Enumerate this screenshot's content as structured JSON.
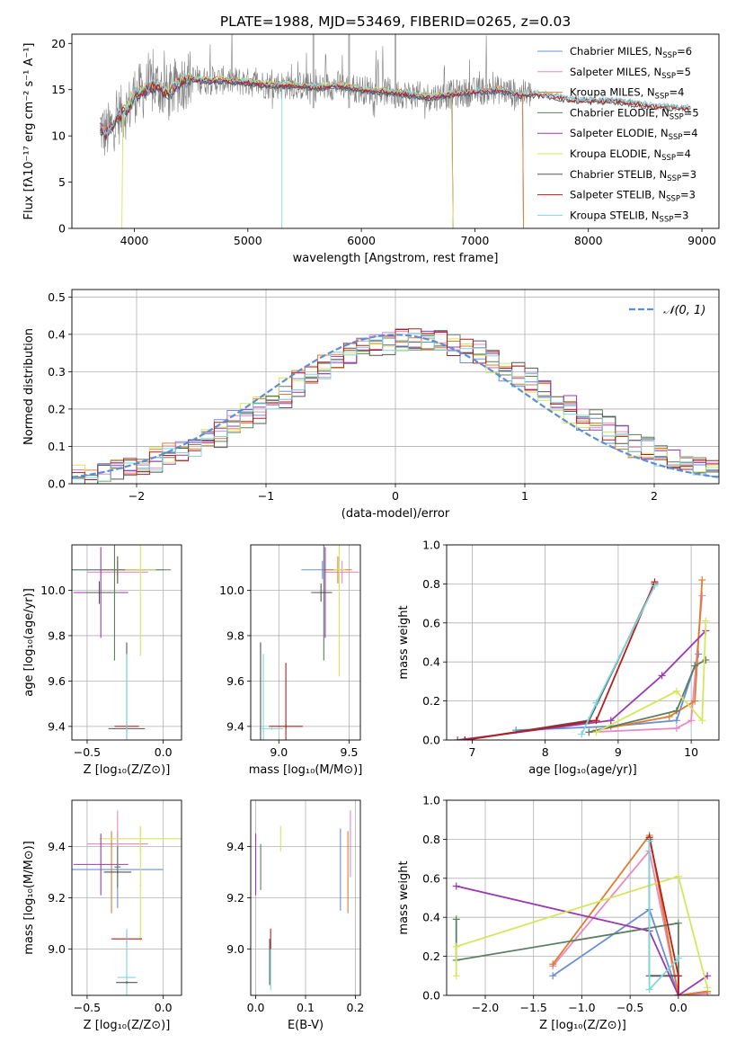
{
  "figure": {
    "title": "PLATE=1988, MJD=53469, FIBERID=0265, z=0.03"
  },
  "colors": {
    "Chabrier MILES": "#6a8fd8",
    "Salpeter MILES": "#e98ac0",
    "Kroupa MILES": "#e07d2d",
    "Chabrier ELODIE": "#5c7f61",
    "Salpeter ELODIE": "#9b3ab0",
    "Kroupa ELODIE": "#d5e65c",
    "Chabrier STELIB": "#555555",
    "Salpeter STELIB": "#b81d1d",
    "Kroupa STELIB": "#7fd6dd"
  },
  "chart_data": [
    {
      "id": "spectrum",
      "type": "line",
      "xlabel": "wavelength [Angstrom, rest frame]",
      "ylabel": "Flux [fλ10⁻¹⁷ erg cm⁻² s⁻¹ A⁻¹]",
      "xlim": [
        3450,
        9150
      ],
      "ylim": [
        0,
        21
      ],
      "xticks": [
        4000,
        5000,
        6000,
        7000,
        8000,
        9000
      ],
      "yticks": [
        0,
        5,
        10,
        15,
        20
      ],
      "grid": false,
      "legend_position": "top-right",
      "legend": [
        {
          "label": "Chabrier MILES, N",
          "sub": "SSP",
          "suffix": "=6"
        },
        {
          "label": "Salpeter MILES, N",
          "sub": "SSP",
          "suffix": "=5"
        },
        {
          "label": "Kroupa MILES, N",
          "sub": "SSP",
          "suffix": "=4"
        },
        {
          "label": "Chabrier ELODIE, N",
          "sub": "SSP",
          "suffix": "=5"
        },
        {
          "label": "Salpeter ELODIE, N",
          "sub": "SSP",
          "suffix": "=4"
        },
        {
          "label": "Kroupa ELODIE, N",
          "sub": "SSP",
          "suffix": "=4"
        },
        {
          "label": "Chabrier STELIB, N",
          "sub": "SSP",
          "suffix": "=3"
        },
        {
          "label": "Salpeter STELIB, N",
          "sub": "SSP",
          "suffix": "=3"
        },
        {
          "label": "Kroupa STELIB, N",
          "sub": "SSP",
          "suffix": "=3"
        }
      ],
      "series_names": [
        "Chabrier MILES",
        "Salpeter MILES",
        "Kroupa MILES",
        "Chabrier ELODIE",
        "Salpeter ELODIE",
        "Kroupa ELODIE",
        "Chabrier STELIB",
        "Salpeter STELIB",
        "Kroupa STELIB"
      ],
      "continuum": {
        "x": [
          3700,
          3750,
          3800,
          3850,
          3900,
          3950,
          4000,
          4100,
          4200,
          4300,
          4400,
          4500,
          4600,
          4800,
          5000,
          5200,
          5400,
          5600,
          5800,
          6000,
          6200,
          6400,
          6600,
          6800,
          7000,
          7200,
          7400,
          7600,
          7800,
          8000,
          8200,
          8400,
          8600,
          8800
        ],
        "y": [
          11.0,
          10.2,
          11.0,
          12.0,
          12.5,
          13.0,
          14.5,
          15.0,
          15.5,
          14.5,
          15.8,
          16.2,
          16.0,
          16.0,
          15.8,
          15.5,
          15.5,
          15.2,
          15.5,
          15.0,
          14.8,
          14.5,
          14.2,
          14.5,
          14.8,
          15.0,
          14.5,
          14.5,
          14.0,
          13.8,
          13.8,
          13.5,
          13.2,
          13.0
        ]
      },
      "model_ranges": {
        "Chabrier MILES": [
          3700,
          7420
        ],
        "Salpeter MILES": [
          3700,
          7420
        ],
        "Kroupa MILES": [
          3700,
          7420
        ],
        "Chabrier ELODIE": [
          3700,
          6800
        ],
        "Salpeter ELODIE": [
          3700,
          6800
        ],
        "Kroupa ELODIE": [
          3900,
          6800
        ],
        "Chabrier STELIB": [
          3700,
          8900
        ],
        "Salpeter STELIB": [
          3700,
          8900
        ],
        "Kroupa STELIB": [
          3700,
          8900
        ]
      }
    },
    {
      "id": "residuals",
      "type": "histogram",
      "xlabel": "(data-model)/error",
      "ylabel": "Normed distribution",
      "xlim": [
        -2.5,
        2.5
      ],
      "ylim": [
        0,
        0.52
      ],
      "xticks": [
        -2,
        -1,
        0,
        1,
        2
      ],
      "yticks": [
        0.0,
        0.1,
        0.2,
        0.3,
        0.4,
        0.5
      ],
      "grid": true,
      "legend_position": "top-right",
      "legend": [
        {
          "label": "𝒩(0, 1)"
        }
      ],
      "bin_width": 0.1,
      "reference_curve": "normal(0,1)",
      "reference_color": "#5b8fd6"
    },
    {
      "id": "age-vs-Z",
      "type": "errorbar",
      "xlabel": "Z [log₁₀(Z/Z⊙)]",
      "ylabel": "age  [log₁₀(age/yr)]",
      "xlim": [
        -0.6,
        0.12
      ],
      "ylim": [
        9.34,
        10.2
      ],
      "xticks": [
        -0.5,
        0.0
      ],
      "yticks": [
        9.4,
        9.6,
        9.8,
        10.0
      ],
      "grid": true,
      "points": [
        {
          "series": "Chabrier MILES",
          "x": -0.3,
          "y": 10.09,
          "xerr": 0.3,
          "yerr": 0.04
        },
        {
          "series": "Salpeter MILES",
          "x": -0.3,
          "y": 10.08,
          "xerr": 0.2,
          "yerr": 0.05
        },
        {
          "series": "Kroupa MILES",
          "x": -0.3,
          "y": 10.09,
          "xerr": 0.12,
          "yerr": 0.06
        },
        {
          "series": "Chabrier ELODIE",
          "x": -0.3,
          "y": 10.09,
          "xerr": 0.35,
          "yerr": 0.06
        },
        {
          "series": "Salpeter ELODIE",
          "x": -0.41,
          "y": 9.99,
          "xerr": 0.18,
          "yerr": 0.2
        },
        {
          "series": "Kroupa ELODIE",
          "x": -0.15,
          "y": 10.09,
          "xerr": 0.1,
          "yerr": 0.38
        },
        {
          "series": "Chabrier STELIB",
          "x": -0.42,
          "y": 9.99,
          "xerr": 0.08,
          "yerr": 0.05
        },
        {
          "series": "Chabrier ELODIE",
          "x": -0.32,
          "y": 9.99,
          "xerr": 0.02,
          "yerr": 0.3
        },
        {
          "series": "Chabrier STELIB",
          "x": -0.24,
          "y": 9.39,
          "xerr": 0.12,
          "yerr": 0.01
        },
        {
          "series": "Salpeter STELIB",
          "x": -0.24,
          "y": 9.4,
          "xerr": 0.08,
          "yerr": 0.01
        },
        {
          "series": "Chabrier STELIB",
          "x": -0.24,
          "y": 9.39,
          "xerr": 0.005,
          "yerr": 0.38
        },
        {
          "series": "Kroupa STELIB",
          "x": -0.24,
          "y": 9.39,
          "xerr": 0.005,
          "yerr": 0.33
        }
      ]
    },
    {
      "id": "age-vs-mass",
      "type": "errorbar",
      "xlabel": "mass [log₁₀(M/M⊙)]",
      "ylabel": "",
      "xlim": [
        8.8,
        9.58
      ],
      "ylim": [
        9.34,
        10.2
      ],
      "xticks": [
        9.0,
        9.5
      ],
      "yticks": [
        9.4,
        9.6,
        9.8,
        10.0
      ],
      "grid": true,
      "points": [
        {
          "series": "Chabrier MILES",
          "x": 9.31,
          "y": 10.09,
          "xerr": 0.15,
          "yerr": 0.04
        },
        {
          "series": "Salpeter MILES",
          "x": 9.45,
          "y": 10.08,
          "xerr": 0.12,
          "yerr": 0.05
        },
        {
          "series": "Kroupa MILES",
          "x": 9.42,
          "y": 10.09,
          "xerr": 0.1,
          "yerr": 0.06
        },
        {
          "series": "Kroupa ELODIE",
          "x": 9.43,
          "y": 10.09,
          "xerr": 0.04,
          "yerr": 0.47
        },
        {
          "series": "Salpeter ELODIE",
          "x": 9.33,
          "y": 9.99,
          "xerr": 0.05,
          "yerr": 0.2
        },
        {
          "series": "Chabrier ELODIE",
          "x": 9.32,
          "y": 9.99,
          "xerr": 0.005,
          "yerr": 0.3
        },
        {
          "series": "Chabrier STELIB",
          "x": 9.3,
          "y": 9.99,
          "xerr": 0.07,
          "yerr": 0.04
        },
        {
          "series": "Chabrier STELIB",
          "x": 8.87,
          "y": 9.39,
          "xerr": 0.005,
          "yerr": 0.38
        },
        {
          "series": "Kroupa STELIB",
          "x": 8.89,
          "y": 9.39,
          "xerr": 0.005,
          "yerr": 0.33
        },
        {
          "series": "Salpeter STELIB",
          "x": 9.05,
          "y": 9.4,
          "xerr": 0.12,
          "yerr": 0.01
        },
        {
          "series": "Salpeter STELIB",
          "x": 9.05,
          "y": 9.4,
          "xerr": 0.005,
          "yerr": 0.28
        },
        {
          "series": "Kroupa STELIB",
          "x": 8.95,
          "y": 9.39,
          "xerr": 0.08,
          "yerr": 0.005
        }
      ]
    },
    {
      "id": "mass-weight-vs-age",
      "type": "line",
      "xlabel": "age  [log₁₀(age/yr)]",
      "ylabel": "mass weight",
      "xlim": [
        6.65,
        10.38
      ],
      "ylim": [
        0.0,
        1.0
      ],
      "xticks": [
        7,
        8,
        9,
        10
      ],
      "yticks": [
        0.0,
        0.2,
        0.4,
        0.6,
        0.8,
        1.0
      ],
      "grid": true,
      "series": [
        {
          "series": "Chabrier MILES",
          "x": [
            7.6,
            8.9,
            9.8,
            10.1
          ],
          "y": [
            0.05,
            0.07,
            0.1,
            0.44
          ]
        },
        {
          "series": "Salpeter MILES",
          "x": [
            8.6,
            9.8,
            10.0,
            10.15
          ],
          "y": [
            0.04,
            0.06,
            0.1,
            0.74
          ]
        },
        {
          "series": "Kroupa MILES",
          "x": [
            8.7,
            9.7,
            10.05,
            10.15
          ],
          "y": [
            0.05,
            0.12,
            0.2,
            0.82
          ]
        },
        {
          "series": "Chabrier ELODIE",
          "x": [
            8.6,
            9.8,
            10.05,
            10.2
          ],
          "y": [
            0.04,
            0.15,
            0.38,
            0.41
          ]
        },
        {
          "series": "Salpeter ELODIE",
          "x": [
            6.8,
            8.9,
            9.6,
            10.2
          ],
          "y": [
            0.0,
            0.1,
            0.33,
            0.56
          ]
        },
        {
          "series": "Kroupa ELODIE",
          "x": [
            8.7,
            9.8,
            10.15,
            10.2
          ],
          "y": [
            0.04,
            0.25,
            0.1,
            0.61
          ]
        },
        {
          "series": "Chabrier STELIB",
          "x": [
            6.9,
            8.6,
            9.5
          ],
          "y": [
            0.0,
            0.1,
            0.8
          ]
        },
        {
          "series": "Salpeter STELIB",
          "x": [
            6.9,
            8.7,
            9.5
          ],
          "y": [
            0.0,
            0.1,
            0.81
          ]
        },
        {
          "series": "Kroupa STELIB",
          "x": [
            8.5,
            8.7,
            9.5
          ],
          "y": [
            0.03,
            0.19,
            0.79
          ]
        }
      ]
    },
    {
      "id": "mass-vs-Z",
      "type": "errorbar",
      "xlabel": "Z [log₁₀(Z/Z⊙)]",
      "ylabel": "mass [log₁₀(M/M⊙)]",
      "xlim": [
        -0.6,
        0.12
      ],
      "ylim": [
        8.82,
        9.58
      ],
      "xticks": [
        -0.5,
        0.0
      ],
      "yticks": [
        9.0,
        9.2,
        9.4
      ],
      "grid": true,
      "points": [
        {
          "series": "Chabrier MILES",
          "x": -0.3,
          "y": 9.31,
          "xerr": 0.3,
          "yerr": 0.15
        },
        {
          "series": "Salpeter MILES",
          "x": -0.3,
          "y": 9.41,
          "xerr": 0.2,
          "yerr": 0.13
        },
        {
          "series": "Kroupa MILES",
          "x": -0.34,
          "y": 9.3,
          "xerr": 0.03,
          "yerr": 0.16
        },
        {
          "series": "Kroupa ELODIE",
          "x": -0.15,
          "y": 9.43,
          "xerr": 0.27,
          "yerr": 0.05
        },
        {
          "series": "Salpeter ELODIE",
          "x": -0.41,
          "y": 9.33,
          "xerr": 0.18,
          "yerr": 0.12
        },
        {
          "series": "Chabrier ELODIE",
          "x": -0.3,
          "y": 9.32,
          "xerr": 0.02,
          "yerr": 0.08
        },
        {
          "series": "Chabrier STELIB",
          "x": -0.3,
          "y": 9.3,
          "xerr": 0.09,
          "yerr": 0.005
        },
        {
          "series": "Kroupa ELODIE",
          "x": -0.15,
          "y": 9.25,
          "xerr": 0.005,
          "yerr": 0.22
        },
        {
          "series": "Salpeter STELIB",
          "x": -0.24,
          "y": 9.04,
          "xerr": 0.1,
          "yerr": 0.005
        },
        {
          "series": "Salpeter STELIB",
          "x": -0.24,
          "y": 9.04,
          "xerr": 0.005,
          "yerr": 0.03
        },
        {
          "series": "Kroupa STELIB",
          "x": -0.24,
          "y": 8.89,
          "xerr": 0.06,
          "yerr": 0.005
        },
        {
          "series": "Kroupa STELIB",
          "x": -0.24,
          "y": 8.89,
          "xerr": 0.005,
          "yerr": 0.19
        },
        {
          "series": "Chabrier STELIB",
          "x": -0.24,
          "y": 8.87,
          "xerr": 0.07,
          "yerr": 0.005
        }
      ]
    },
    {
      "id": "ebv",
      "type": "errorbar",
      "xlabel": "E(B-V)",
      "ylabel": "",
      "xlim": [
        -0.01,
        0.21
      ],
      "ylim": [
        8.82,
        9.58
      ],
      "xticks": [
        0.0,
        0.1,
        0.2
      ],
      "yticks": [
        9.0,
        9.2,
        9.4
      ],
      "grid": true,
      "points": [
        {
          "series": "Salpeter ELODIE",
          "x": 0.0,
          "y": 9.33,
          "yerr": 0.12
        },
        {
          "series": "Chabrier ELODIE",
          "x": 0.01,
          "y": 9.32,
          "yerr": 0.09
        },
        {
          "series": "Kroupa ELODIE",
          "x": 0.05,
          "y": 9.43,
          "yerr": 0.05
        },
        {
          "series": "Chabrier STELIB",
          "x": 0.028,
          "y": 8.95,
          "yerr": 0.09
        },
        {
          "series": "Salpeter STELIB",
          "x": 0.03,
          "y": 9.04,
          "yerr": 0.04
        },
        {
          "series": "Kroupa STELIB",
          "x": 0.03,
          "y": 8.92,
          "yerr": 0.08
        },
        {
          "series": "Chabrier MILES",
          "x": 0.17,
          "y": 9.31,
          "yerr": 0.16
        },
        {
          "series": "Kroupa MILES",
          "x": 0.185,
          "y": 9.3,
          "yerr": 0.16
        },
        {
          "series": "Salpeter MILES",
          "x": 0.19,
          "y": 9.41,
          "yerr": 0.13
        }
      ]
    },
    {
      "id": "mass-weight-vs-Z",
      "type": "line",
      "xlabel": "Z [log₁₀(Z/Z⊙)]",
      "ylabel": "mass weight",
      "xlim": [
        -2.4,
        0.42
      ],
      "ylim": [
        0.0,
        1.0
      ],
      "xticks": [
        -2.0,
        -1.5,
        -1.0,
        -0.5,
        0.0
      ],
      "yticks": [
        0.0,
        0.2,
        0.4,
        0.6,
        0.8,
        1.0
      ],
      "grid": true,
      "series": [
        {
          "series": "Chabrier MILES",
          "x": [
            -1.3,
            -0.3,
            0.0,
            0.3
          ],
          "y": [
            0.1,
            0.44,
            0.0,
            0.02
          ]
        },
        {
          "series": "Salpeter MILES",
          "x": [
            -1.3,
            -0.3,
            0.0,
            0.3
          ],
          "y": [
            0.15,
            0.74,
            0.0,
            0.01
          ]
        },
        {
          "series": "Kroupa MILES",
          "x": [
            -1.3,
            -0.3,
            0.0,
            0.3
          ],
          "y": [
            0.16,
            0.82,
            0.0,
            0.02
          ]
        },
        {
          "series": "Chabrier ELODIE",
          "x": [
            -2.3,
            -2.3,
            0.0,
            0.0
          ],
          "y": [
            0.39,
            0.18,
            0.37,
            0.0
          ]
        },
        {
          "series": "Salpeter ELODIE",
          "x": [
            -2.3,
            -0.3,
            0.0,
            0.3
          ],
          "y": [
            0.56,
            0.33,
            0.0,
            0.1
          ]
        },
        {
          "series": "Kroupa ELODIE",
          "x": [
            -2.3,
            -2.3,
            0.0,
            0.3
          ],
          "y": [
            0.1,
            0.25,
            0.61,
            0.04
          ]
        },
        {
          "series": "Chabrier STELIB",
          "x": [
            -0.3,
            -0.3,
            0.0
          ],
          "y": [
            0.8,
            0.1,
            0.1
          ]
        },
        {
          "series": "Salpeter STELIB",
          "x": [
            -0.3,
            0.0,
            0.0
          ],
          "y": [
            0.81,
            0.1,
            0.0
          ]
        },
        {
          "series": "Kroupa STELIB",
          "x": [
            -0.3,
            -0.3,
            0.0
          ],
          "y": [
            0.79,
            0.03,
            0.19
          ]
        }
      ]
    }
  ]
}
